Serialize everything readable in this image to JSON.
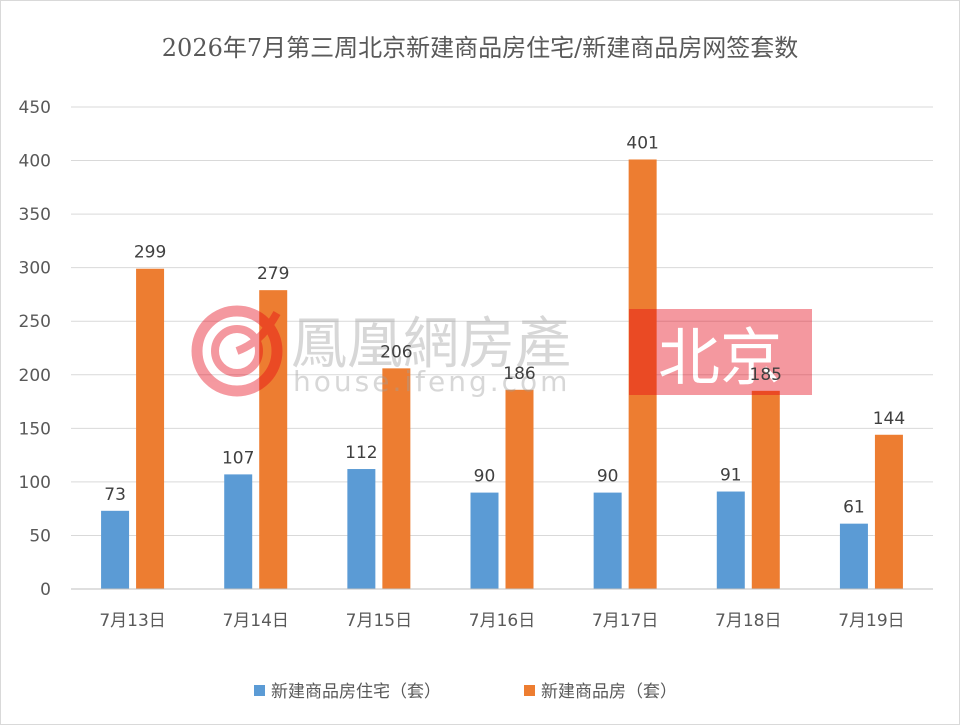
{
  "chart_data": {
    "type": "bar",
    "title": "2026年7月第三周北京新建商品房住宅/新建商品房网签套数",
    "categories": [
      "7月13日",
      "7月14日",
      "7月15日",
      "7月16日",
      "7月17日",
      "7月18日",
      "7月19日"
    ],
    "series": [
      {
        "name": "新建商品房住宅（套）",
        "values": [
          73,
          107,
          112,
          90,
          90,
          91,
          61
        ],
        "color": "#5b9bd5"
      },
      {
        "name": "新建商品房（套）",
        "values": [
          299,
          279,
          206,
          186,
          401,
          185,
          144
        ],
        "color": "#ed7d31"
      }
    ],
    "ylim": [
      0,
      450
    ],
    "yticks": [
      0,
      50,
      100,
      150,
      200,
      250,
      300,
      350,
      400,
      450
    ],
    "xlabel": "",
    "ylabel": "",
    "grid": true,
    "legend_position": "bottom"
  },
  "watermark": {
    "brand": "鳳凰網房產",
    "url": "house.ifeng.com",
    "city": "北京",
    "logo_color": "#e60012"
  }
}
